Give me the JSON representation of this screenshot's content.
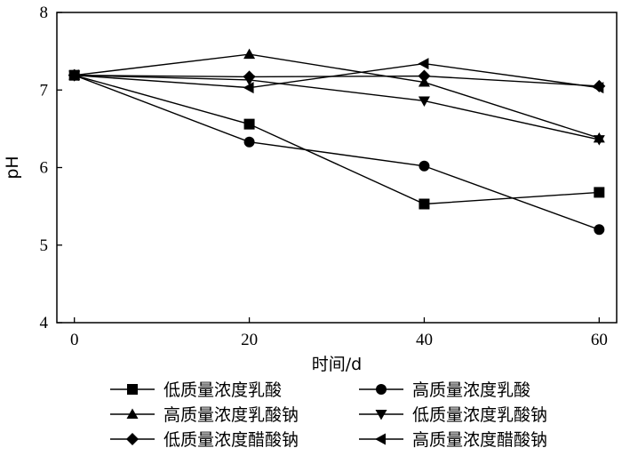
{
  "chart_data": {
    "type": "line",
    "xlabel": "时间/d",
    "ylabel": "pH",
    "xlim": [
      -2,
      62
    ],
    "ylim": [
      4,
      8
    ],
    "x_ticks": [
      "0",
      "20",
      "40",
      "60"
    ],
    "y_ticks": [
      "4",
      "5",
      "6",
      "7",
      "8"
    ],
    "x": [
      0,
      20,
      40,
      60
    ],
    "grid": false,
    "legend_position": "bottom",
    "series": [
      {
        "name": "低质量浓度乳酸",
        "marker": "square",
        "values": [
          7.19,
          6.56,
          5.53,
          5.68
        ]
      },
      {
        "name": "高质量浓度乳酸",
        "marker": "circle",
        "values": [
          7.19,
          6.33,
          6.02,
          5.2
        ]
      },
      {
        "name": "高质量浓度乳酸钠",
        "marker": "triangle-up",
        "values": [
          7.19,
          7.46,
          7.1,
          6.38
        ]
      },
      {
        "name": "低质量浓度乳酸钠",
        "marker": "triangle-down",
        "values": [
          7.19,
          7.13,
          6.86,
          6.36
        ]
      },
      {
        "name": "低质量浓度醋酸钠",
        "marker": "diamond",
        "values": [
          7.19,
          7.17,
          7.18,
          7.05
        ]
      },
      {
        "name": "高质量浓度醋酸钠",
        "marker": "triangle-left",
        "values": [
          7.19,
          7.03,
          7.34,
          7.03
        ]
      }
    ]
  }
}
